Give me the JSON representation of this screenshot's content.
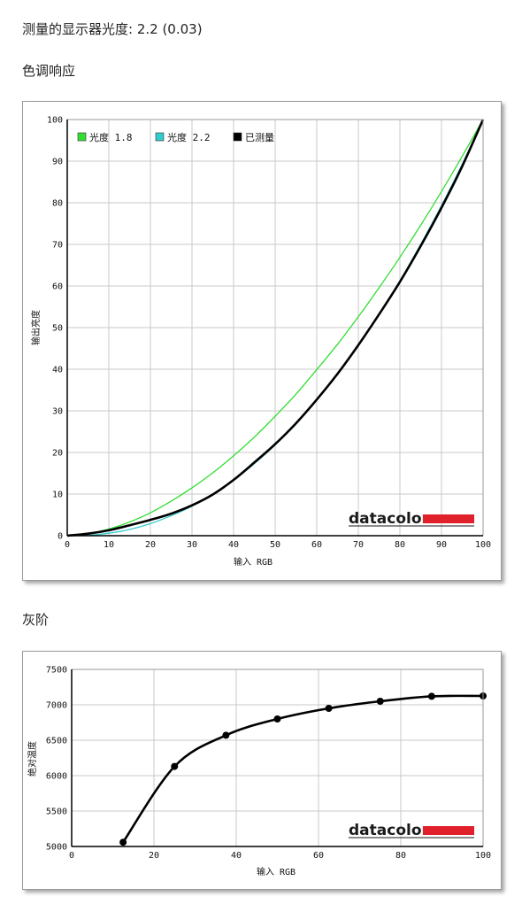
{
  "header": {
    "measured_gamma": "测量的显示器光度:  2.2 (0.03)"
  },
  "sections": {
    "tone_response": "色调响应",
    "grayscale": "灰阶"
  },
  "brand": {
    "logo_text": "datacolor",
    "logo_color": "#e0202a"
  },
  "chart_data": [
    {
      "type": "line",
      "xlabel": "输入 RGB",
      "ylabel": "输出亮度",
      "xlim": [
        0,
        100
      ],
      "ylim": [
        0,
        100
      ],
      "x_ticks": [
        "0",
        "10",
        "20",
        "30",
        "40",
        "50",
        "60",
        "70",
        "80",
        "90",
        "100"
      ],
      "y_ticks": [
        "0",
        "10",
        "20",
        "30",
        "40",
        "50",
        "60",
        "70",
        "80",
        "90",
        "100"
      ],
      "grid": true,
      "legend_position": "top-left",
      "series": [
        {
          "name": "光度 1.8",
          "color": "#33dd33",
          "x": [
            0,
            5,
            10,
            15,
            20,
            25,
            30,
            35,
            40,
            45,
            50,
            55,
            60,
            65,
            70,
            75,
            80,
            85,
            90,
            95,
            100
          ],
          "y": [
            0,
            0.5,
            1.6,
            3.3,
            5.5,
            8.3,
            11.5,
            15.1,
            19.2,
            23.7,
            28.7,
            34.0,
            39.9,
            46.0,
            52.6,
            59.6,
            66.9,
            74.6,
            82.7,
            91.2,
            100
          ]
        },
        {
          "name": "光度 2.2",
          "color": "#33cccc",
          "x": [
            0,
            5,
            10,
            15,
            20,
            25,
            30,
            35,
            40,
            45,
            50,
            55,
            60,
            65,
            70,
            75,
            80,
            85,
            90,
            95,
            100
          ],
          "y": [
            0,
            0.1,
            0.6,
            1.5,
            2.9,
            4.8,
            7.1,
            9.9,
            13.3,
            17.3,
            21.8,
            26.8,
            32.5,
            38.8,
            45.6,
            53.1,
            61.2,
            70.0,
            79.3,
            89.3,
            100
          ]
        },
        {
          "name": "已测量",
          "color": "#000000",
          "x": [
            0,
            5,
            10,
            15,
            20,
            25,
            30,
            35,
            40,
            45,
            50,
            55,
            60,
            65,
            70,
            75,
            80,
            85,
            90,
            95,
            100
          ],
          "y": [
            0,
            0.5,
            1.3,
            2.5,
            3.8,
            5.3,
            7.3,
            9.9,
            13.4,
            17.6,
            22.0,
            27.0,
            32.7,
            38.9,
            45.8,
            53.2,
            61.0,
            69.6,
            78.8,
            88.8,
            100
          ]
        }
      ]
    },
    {
      "type": "line",
      "xlabel": "输入 RGB",
      "ylabel": "绝对温度",
      "xlim": [
        0,
        100
      ],
      "ylim": [
        5000,
        7500
      ],
      "x_ticks": [
        "0",
        "20",
        "40",
        "60",
        "80",
        "100"
      ],
      "y_ticks": [
        "5000",
        "5500",
        "6000",
        "6500",
        "7000",
        "7500"
      ],
      "grid": true,
      "series": [
        {
          "color": "#000000",
          "x": [
            12.5,
            25,
            37.5,
            50,
            62.5,
            75,
            87.5,
            100
          ],
          "y": [
            5060,
            6130,
            6570,
            6800,
            6950,
            7050,
            7120,
            7125
          ]
        }
      ]
    }
  ]
}
